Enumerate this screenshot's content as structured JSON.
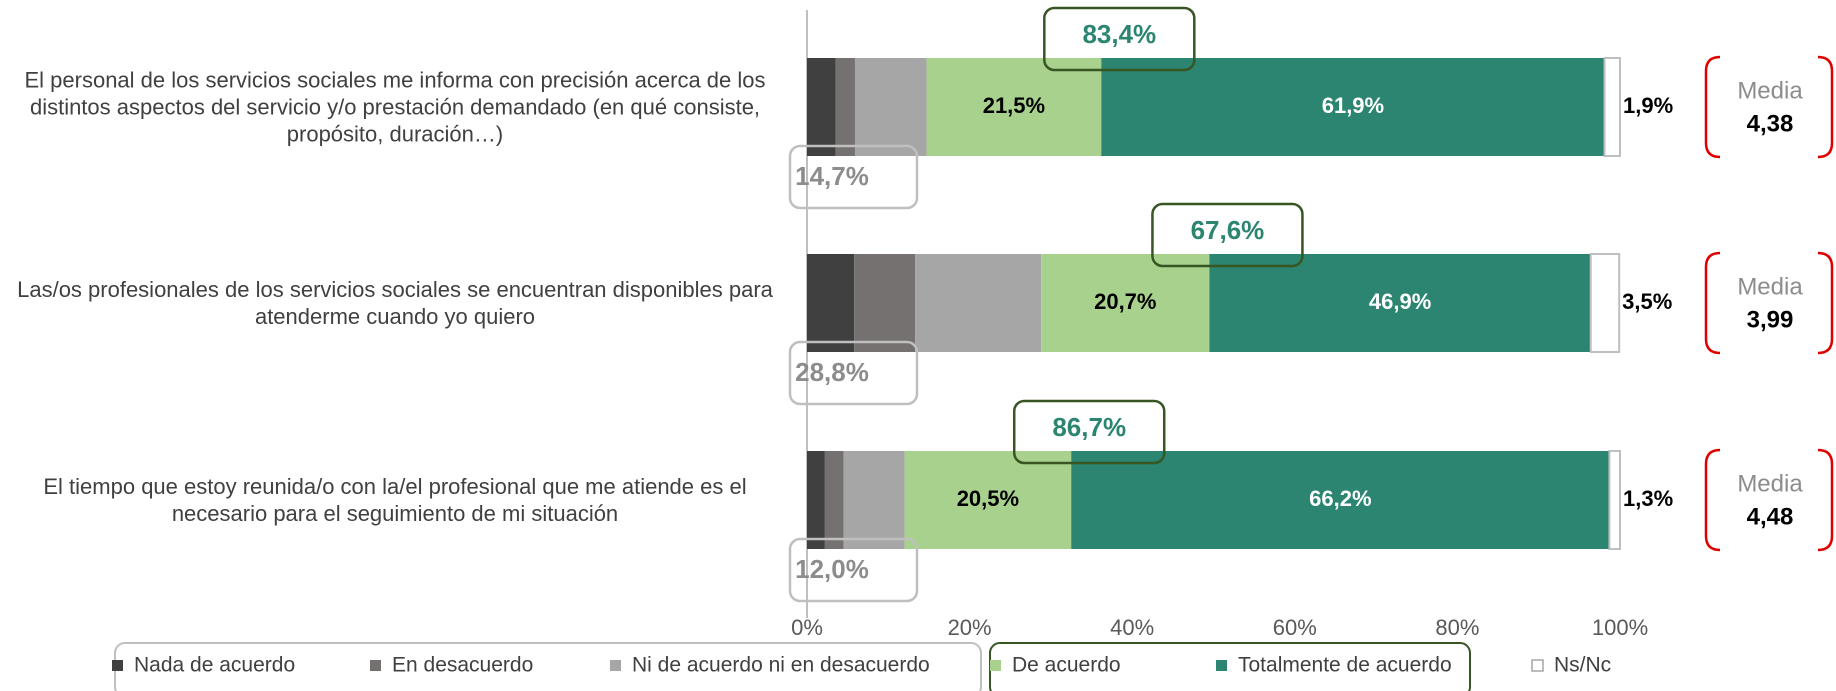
{
  "chart_data": {
    "type": "stacked_bar_horizontal",
    "categories": [
      "El personal de los servicios sociales me informa con precisión acerca de los distintos aspectos del servicio y/o prestación demandado (en qué consiste, propósito, duración…)",
      "Las/os profesionales de los servicios sociales se encuentran disponibles para atenderme cuando yo quiero",
      "El tiempo que estoy reunida/o con la/el profesional que me atiende es el necesario para el seguimiento de mi situación"
    ],
    "series": [
      {
        "name": "Nada de acuerdo",
        "color": "#404040",
        "values": [
          3.5,
          5.8,
          2.2
        ]
      },
      {
        "name": "En desacuerdo",
        "color": "#767171",
        "values": [
          2.4,
          7.5,
          2.3
        ]
      },
      {
        "name": "Ni de acuerdo ni en desacuerdo",
        "color": "#a6a6a6",
        "values": [
          8.8,
          15.5,
          7.5
        ]
      },
      {
        "name": "De acuerdo",
        "color": "#a9d18e",
        "values": [
          21.5,
          20.7,
          20.5
        ],
        "value_labels": [
          "21,5%",
          "20,7%",
          "20,5%"
        ]
      },
      {
        "name": "Totalmente de acuerdo",
        "color": "#2b8570",
        "values": [
          61.9,
          46.9,
          66.2
        ],
        "value_labels": [
          "61,9%",
          "46,9%",
          "66,2%"
        ]
      },
      {
        "name": "Ns/Nc",
        "color": "#ffffff",
        "values": [
          1.9,
          3.5,
          1.3
        ],
        "value_labels": [
          "1,9%",
          "3,5%",
          "1,3%"
        ]
      }
    ],
    "agree_totals": {
      "values": [
        83.4,
        67.6,
        86.7
      ],
      "value_labels": [
        "83,4%",
        "67,6%",
        "86,7%"
      ]
    },
    "disagree_totals": {
      "values": [
        14.7,
        28.8,
        12.0
      ],
      "value_labels": [
        "14,7%",
        "28,8%",
        "12,0%"
      ]
    },
    "means": {
      "label": "Media",
      "values": [
        4.38,
        3.99,
        4.48
      ],
      "value_labels": [
        "4,38",
        "3,99",
        "4,48"
      ]
    },
    "xlim": [
      0,
      100
    ],
    "xticks": [
      {
        "value": 0,
        "label": "0%"
      },
      {
        "value": 20,
        "label": "20%"
      },
      {
        "value": 40,
        "label": "40%"
      },
      {
        "value": 60,
        "label": "60%"
      },
      {
        "value": 80,
        "label": "80%"
      },
      {
        "value": 100,
        "label": "100%"
      }
    ],
    "legend": "bottom"
  }
}
